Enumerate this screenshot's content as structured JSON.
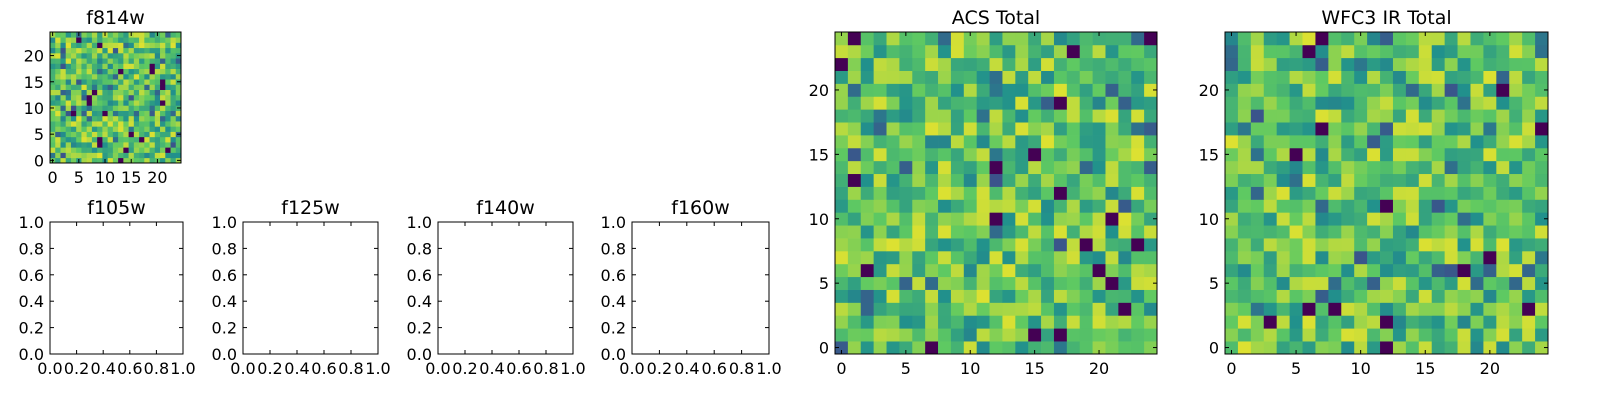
{
  "figure": {
    "colormap": "viridis",
    "colormap_stops": [
      "#440154",
      "#3b528b",
      "#21918c",
      "#5ec962",
      "#fde725"
    ]
  },
  "chart_data": [
    {
      "id": "f814w",
      "type": "heatmap",
      "title": "f814w",
      "grid_size": 25,
      "x_ticks": [
        0,
        5,
        10,
        15,
        20
      ],
      "y_ticks": [
        0,
        5,
        10,
        15,
        20
      ],
      "xlim": [
        -0.5,
        24.5
      ],
      "ylim": [
        -0.5,
        24.5
      ],
      "value_range": [
        0,
        1
      ],
      "seed": 814
    },
    {
      "id": "f105w",
      "type": "heatmap",
      "title": "f105w",
      "empty": true,
      "x_ticks": [
        "0.0",
        "0.2",
        "0.4",
        "0.6",
        "0.8",
        "1.0"
      ],
      "y_ticks": [
        "0.0",
        "0.2",
        "0.4",
        "0.6",
        "0.8",
        "1.0"
      ],
      "xlim": [
        0,
        1
      ],
      "ylim": [
        0,
        1
      ]
    },
    {
      "id": "f125w",
      "type": "heatmap",
      "title": "f125w",
      "empty": true,
      "x_ticks": [
        "0.0",
        "0.2",
        "0.4",
        "0.6",
        "0.8",
        "1.0"
      ],
      "y_ticks": [
        "0.0",
        "0.2",
        "0.4",
        "0.6",
        "0.8",
        "1.0"
      ],
      "xlim": [
        0,
        1
      ],
      "ylim": [
        0,
        1
      ]
    },
    {
      "id": "f140w",
      "type": "heatmap",
      "title": "f140w",
      "empty": true,
      "x_ticks": [
        "0.0",
        "0.2",
        "0.4",
        "0.6",
        "0.8",
        "1.0"
      ],
      "y_ticks": [
        "0.0",
        "0.2",
        "0.4",
        "0.6",
        "0.8",
        "1.0"
      ],
      "xlim": [
        0,
        1
      ],
      "ylim": [
        0,
        1
      ]
    },
    {
      "id": "f160w",
      "type": "heatmap",
      "title": "f160w",
      "empty": true,
      "x_ticks": [
        "0.0",
        "0.2",
        "0.4",
        "0.6",
        "0.8",
        "1.0"
      ],
      "y_ticks": [
        "0.0",
        "0.2",
        "0.4",
        "0.6",
        "0.8",
        "1.0"
      ],
      "xlim": [
        0,
        1
      ],
      "ylim": [
        0,
        1
      ]
    },
    {
      "id": "acs-total",
      "type": "heatmap",
      "title": "ACS Total",
      "grid_size": 25,
      "x_ticks": [
        0,
        5,
        10,
        15,
        20
      ],
      "y_ticks": [
        0,
        5,
        10,
        15,
        20
      ],
      "xlim": [
        -0.5,
        24.5
      ],
      "ylim": [
        -0.5,
        24.5
      ],
      "value_range": [
        0,
        1
      ],
      "seed": 1001
    },
    {
      "id": "wfc3-ir-total",
      "type": "heatmap",
      "title": "WFC3 IR Total",
      "grid_size": 25,
      "x_ticks": [
        0,
        5,
        10,
        15,
        20
      ],
      "y_ticks": [
        0,
        5,
        10,
        15,
        20
      ],
      "xlim": [
        -0.5,
        24.5
      ],
      "ylim": [
        -0.5,
        24.5
      ],
      "value_range": [
        0,
        1
      ],
      "seed": 3003
    }
  ]
}
